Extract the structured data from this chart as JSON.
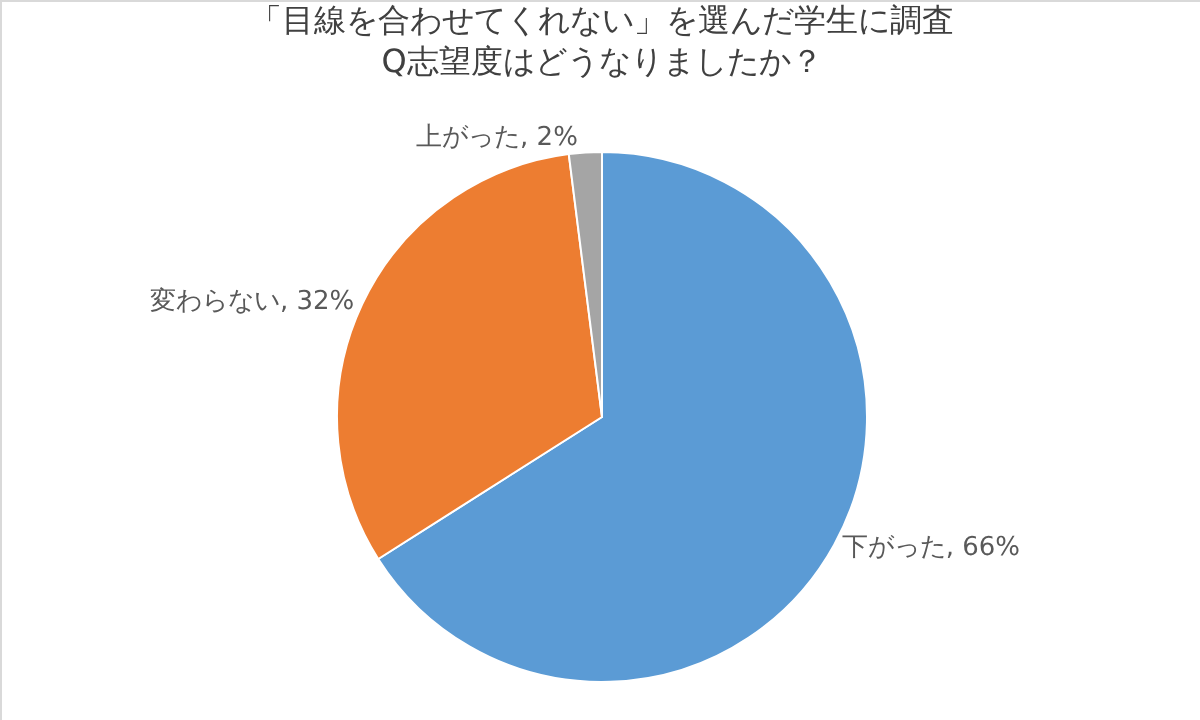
{
  "chart_data": {
    "type": "pie",
    "title": "「目線を合わせてくれない」を選んだ学生に調査\nQ志望度はどうなりましたか？",
    "categories": [
      "下がった",
      "変わらない",
      "上がった"
    ],
    "values": [
      66,
      32,
      2
    ],
    "value_labels": [
      "66%",
      "32%",
      "2%"
    ],
    "colors": [
      "#5b9bd5",
      "#ed7d31",
      "#a5a5a5"
    ],
    "legend": false
  }
}
